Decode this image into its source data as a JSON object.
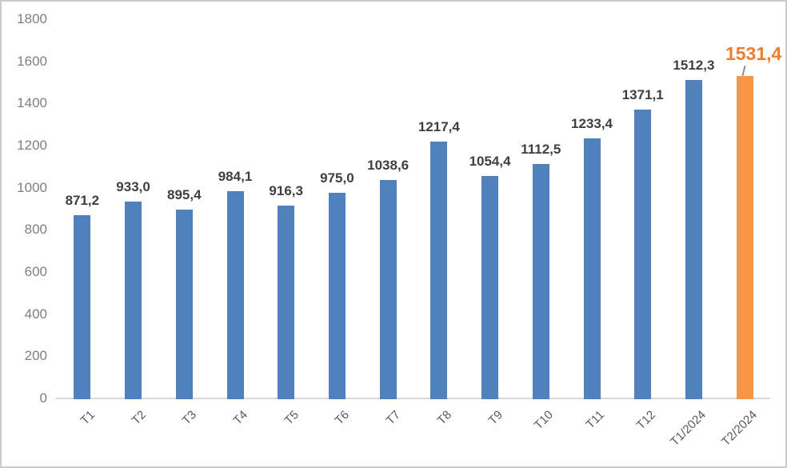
{
  "chart_data": {
    "type": "bar",
    "title": "",
    "xlabel": "",
    "ylabel": "",
    "categories": [
      "T1",
      "T2",
      "T3",
      "T4",
      "T5",
      "T6",
      "T7",
      "T8",
      "T9",
      "T10",
      "T11",
      "T12",
      "T1/2024",
      "T2/2024"
    ],
    "values": [
      871.2,
      933.0,
      895.4,
      984.1,
      916.3,
      975.0,
      1038.6,
      1217.4,
      1054.4,
      1112.5,
      1233.4,
      1371.1,
      1512.3,
      1531.4
    ],
    "value_labels": [
      "871,2",
      "933,0",
      "895,4",
      "984,1",
      "916,3",
      "975,0",
      "1038,6",
      "1217,4",
      "1054,4",
      "1112,5",
      "1233,4",
      "1371,1",
      "1512,3",
      "1531,4"
    ],
    "ylim": [
      0,
      1800
    ],
    "ytick_step": 200,
    "ytick_labels": [
      "0",
      "200",
      "400",
      "600",
      "800",
      "1000",
      "1200",
      "1400",
      "1600",
      "1800"
    ],
    "grid": false,
    "legend": false,
    "bar_color": "#4F81BD",
    "highlight_index": 13,
    "highlight_bar_color": "#F79646",
    "highlight_label_color": "#ED7D31",
    "value_label_color": "#3F3F3F",
    "ytick_label_color": "#7F7F7F",
    "category_label_color": "#595959",
    "axis_line_color": "#D9D9D9",
    "leader_line_color": "#8C8C8C",
    "highlight_has_leader_line": true
  }
}
